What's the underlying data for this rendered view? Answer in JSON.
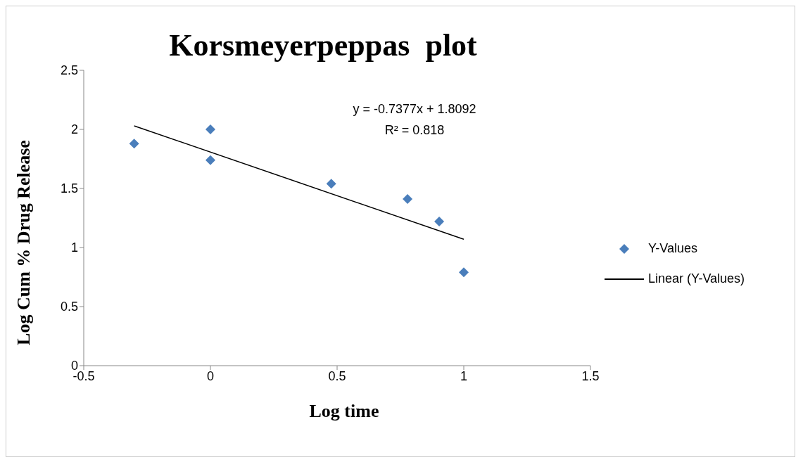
{
  "chart_data": {
    "type": "scatter",
    "title": "Korsmeyerpeppas  plot",
    "xlabel": "Log time",
    "ylabel": "Log Cum % Drug Release",
    "xlim": [
      -0.5,
      1.5
    ],
    "xticks": [
      -0.5,
      0,
      0.5,
      1,
      1.5
    ],
    "ylim": [
      0,
      2.5
    ],
    "yticks": [
      0,
      0.5,
      1,
      1.5,
      2,
      2.5
    ],
    "legend": "right",
    "series": [
      {
        "name": "Y-Values",
        "marker": "diamond",
        "color": "#4a7ebb",
        "x": [
          -0.301,
          0,
          0,
          0.477,
          0.778,
          0.903,
          1
        ],
        "values": [
          1.88,
          2.0,
          1.74,
          1.54,
          1.41,
          1.22,
          0.79
        ]
      },
      {
        "name": "Linear (Y-Values)",
        "type": "line",
        "color": "#000000",
        "line_style": "solid",
        "x": [
          -0.301,
          1
        ],
        "values": [
          2.03,
          1.07
        ]
      }
    ],
    "annotations": [
      "y = -0.7377x + 1.8092",
      "R² = 0.818"
    ]
  }
}
